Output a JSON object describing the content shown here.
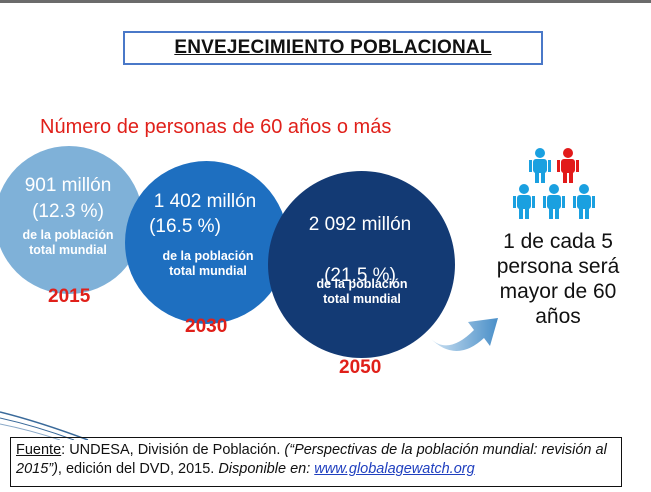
{
  "title": "ENVEJECIMIENTO POBLACIONAL",
  "subtitle": "Número de personas de 60 años o más",
  "circles": [
    {
      "amount": "901 millón",
      "percent": "(12.3 %)",
      "note_line1": "de la población",
      "note_line2": "total mundial",
      "year": "2015"
    },
    {
      "amount": "1 402 millón",
      "percent": "(16.5 %)",
      "note_line1": "de la población",
      "note_line2": "total mundial",
      "year": "2030"
    },
    {
      "amount": "2 092 millón",
      "percent": "(21.5 %)",
      "note_line1": "de la población",
      "note_line2": "total mundial",
      "year": "2050"
    }
  ],
  "statement": {
    "line1": "1 de cada 5",
    "line2": "persona será",
    "line3": "mayor de 60",
    "line4": "años"
  },
  "people": {
    "icon": "person-group-icon",
    "highlight_color": "#e21a1a",
    "base_color": "#1aa0e0"
  },
  "colors": {
    "circle_2015": "#7fb1d8",
    "circle_2030": "#1e6fc0",
    "circle_2050": "#133a74",
    "accent": "#e0201a"
  },
  "source": {
    "label": "Fuente",
    "text": ": UNDESA, División de Población. ",
    "italic": "(“Perspectivas de la población mundial: revisión al 2015”)",
    "text2": ", edición del DVD, 2015. ",
    "italic2": "Disponible en: ",
    "link": "www.globalagewatch.org"
  }
}
